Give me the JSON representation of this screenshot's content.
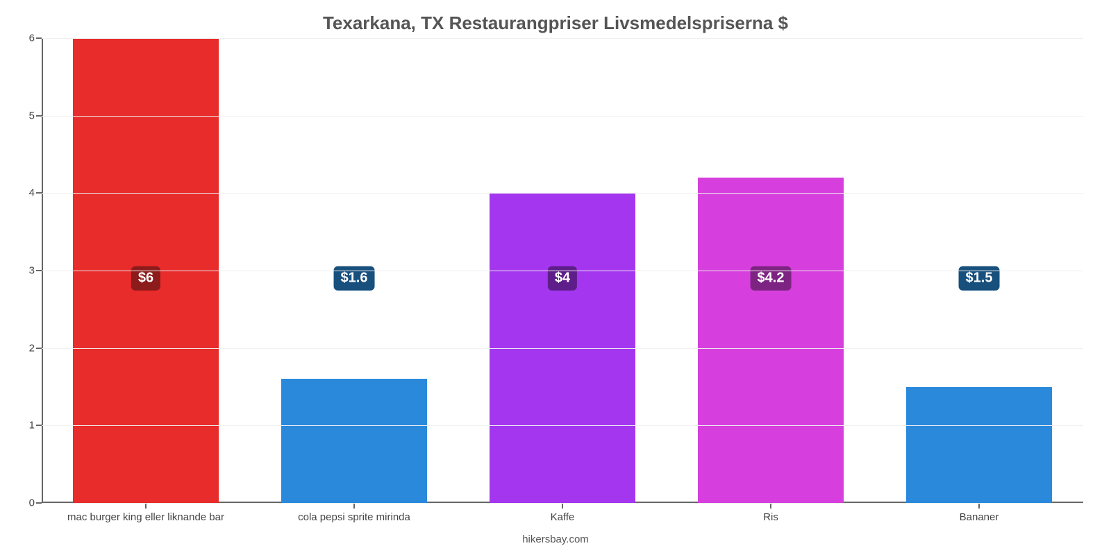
{
  "chart": {
    "type": "bar",
    "title": "Texarkana, TX Restaurangpriser Livsmedelspriserna $",
    "title_color": "#555555",
    "title_fontsize": 26,
    "source": "hikersbay.com",
    "ylim": [
      0,
      6
    ],
    "ytick_step": 1,
    "yticks": [
      0,
      1,
      2,
      3,
      4,
      5,
      6
    ],
    "background_color": "#ffffff",
    "grid_color": "#f0f0f0",
    "axis_color": "#666666",
    "tick_label_color": "#444444",
    "bar_width_pct": 70,
    "categories": [
      "mac burger king eller liknande bar",
      "cola pepsi sprite mirinda",
      "Kaffe",
      "Ris",
      "Bananer"
    ],
    "values": [
      6,
      1.6,
      4,
      4.2,
      1.5
    ],
    "value_labels": [
      "$6",
      "$1.6",
      "$4",
      "$4.2",
      "$1.5"
    ],
    "bar_colors": [
      "#e82b2b",
      "#2a89db",
      "#a336ee",
      "#d63fdd",
      "#2a89db"
    ],
    "badge_colors": [
      "#8c1b1b",
      "#174f7d",
      "#5e1e8a",
      "#7d2482",
      "#174f7d"
    ],
    "badge_text_color": "#ffffff",
    "label_fontsize": 15
  }
}
